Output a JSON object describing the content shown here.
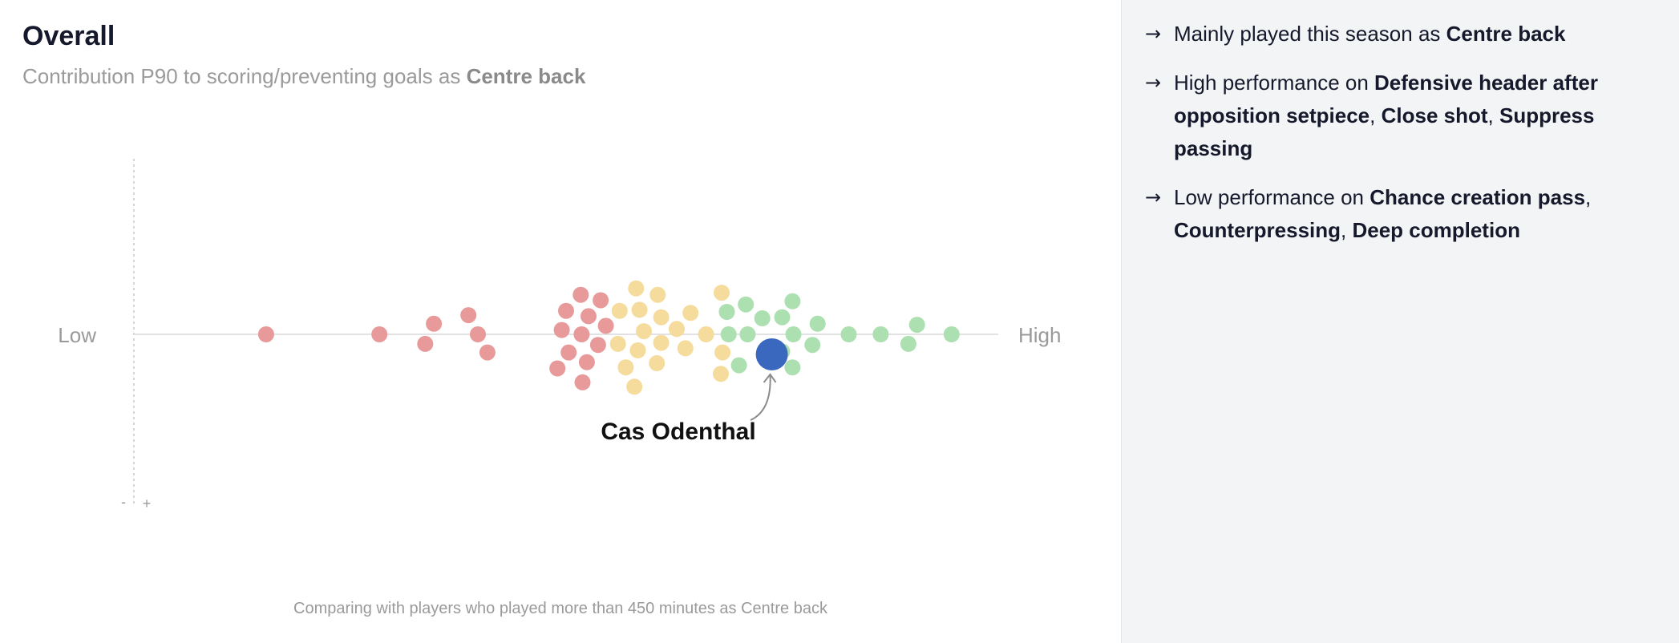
{
  "chart_data": {
    "type": "scatter",
    "title": "Overall",
    "subtitle_prefix": "Contribution P90 to scoring/preventing goals as ",
    "subtitle_position": "Centre back",
    "x_low_label": "Low",
    "x_high_label": "High",
    "y_axis_minus": "-",
    "y_axis_plus": "+",
    "highlight_label": "Cas Odenthal",
    "footnote": "Comparing with players who played more than 450 minutes as Centre back",
    "xlim": [
      0,
      100
    ],
    "ylim": [
      -100,
      100
    ],
    "highlight": {
      "x": 73.8,
      "y": -11.5
    },
    "point_colors": {
      "low": "#e89a9a",
      "mid": "#f5dc9c",
      "high": "#ade0b0",
      "highlight": "#3a68bf"
    },
    "points": [
      {
        "x": 15.3,
        "y": 0,
        "g": "low"
      },
      {
        "x": 28.4,
        "y": 0,
        "g": "low"
      },
      {
        "x": 33.7,
        "y": -5.5,
        "g": "low"
      },
      {
        "x": 34.7,
        "y": 6.1,
        "g": "low"
      },
      {
        "x": 38.7,
        "y": 11.0,
        "g": "low"
      },
      {
        "x": 39.8,
        "y": 0,
        "g": "low"
      },
      {
        "x": 40.9,
        "y": -10.4,
        "g": "low"
      },
      {
        "x": 49.0,
        "y": -19.6,
        "g": "low"
      },
      {
        "x": 49.5,
        "y": 2.5,
        "g": "low"
      },
      {
        "x": 50.0,
        "y": 13.5,
        "g": "low"
      },
      {
        "x": 50.3,
        "y": -10.4,
        "g": "low"
      },
      {
        "x": 51.7,
        "y": 22.7,
        "g": "low"
      },
      {
        "x": 51.8,
        "y": 0,
        "g": "low"
      },
      {
        "x": 51.9,
        "y": -27.6,
        "g": "low"
      },
      {
        "x": 52.4,
        "y": -16.0,
        "g": "low"
      },
      {
        "x": 52.6,
        "y": 10.4,
        "g": "low"
      },
      {
        "x": 53.7,
        "y": -6.1,
        "g": "low"
      },
      {
        "x": 54.0,
        "y": 19.6,
        "g": "low"
      },
      {
        "x": 54.6,
        "y": 4.9,
        "g": "low"
      },
      {
        "x": 56.0,
        "y": -5.5,
        "g": "mid"
      },
      {
        "x": 56.2,
        "y": 13.5,
        "g": "mid"
      },
      {
        "x": 56.9,
        "y": -19.0,
        "g": "mid"
      },
      {
        "x": 57.9,
        "y": -30.1,
        "g": "mid"
      },
      {
        "x": 58.1,
        "y": 26.4,
        "g": "mid"
      },
      {
        "x": 58.3,
        "y": -9.2,
        "g": "mid"
      },
      {
        "x": 58.5,
        "y": 14.1,
        "g": "mid"
      },
      {
        "x": 59.0,
        "y": 1.8,
        "g": "mid"
      },
      {
        "x": 60.5,
        "y": -16.6,
        "g": "mid"
      },
      {
        "x": 60.6,
        "y": 22.7,
        "g": "mid"
      },
      {
        "x": 61.0,
        "y": -4.9,
        "g": "mid"
      },
      {
        "x": 61.0,
        "y": 9.8,
        "g": "mid"
      },
      {
        "x": 62.8,
        "y": 3.1,
        "g": "mid"
      },
      {
        "x": 63.8,
        "y": -8.0,
        "g": "mid"
      },
      {
        "x": 64.4,
        "y": 12.3,
        "g": "mid"
      },
      {
        "x": 66.2,
        "y": 0,
        "g": "mid"
      },
      {
        "x": 68.0,
        "y": 23.9,
        "g": "mid"
      },
      {
        "x": 68.1,
        "y": -10.4,
        "g": "mid"
      },
      {
        "x": 67.9,
        "y": -22.7,
        "g": "mid"
      },
      {
        "x": 68.6,
        "y": 12.9,
        "g": "high"
      },
      {
        "x": 68.8,
        "y": 0,
        "g": "high"
      },
      {
        "x": 70.0,
        "y": -17.8,
        "g": "high"
      },
      {
        "x": 70.8,
        "y": 17.2,
        "g": "high"
      },
      {
        "x": 71.0,
        "y": 0,
        "g": "high"
      },
      {
        "x": 72.7,
        "y": 9.2,
        "g": "high"
      },
      {
        "x": 75.0,
        "y": 9.8,
        "g": "high"
      },
      {
        "x": 75.0,
        "y": -9.8,
        "g": "high"
      },
      {
        "x": 76.3,
        "y": 0,
        "g": "high"
      },
      {
        "x": 76.2,
        "y": 19.0,
        "g": "high"
      },
      {
        "x": 76.2,
        "y": -19.0,
        "g": "high"
      },
      {
        "x": 78.5,
        "y": -6.1,
        "g": "high"
      },
      {
        "x": 79.1,
        "y": 6.1,
        "g": "high"
      },
      {
        "x": 82.7,
        "y": 0,
        "g": "high"
      },
      {
        "x": 86.4,
        "y": 0,
        "g": "high"
      },
      {
        "x": 89.6,
        "y": -5.5,
        "g": "high"
      },
      {
        "x": 90.6,
        "y": 5.5,
        "g": "high"
      },
      {
        "x": 94.6,
        "y": 0,
        "g": "high"
      }
    ]
  },
  "insights": [
    {
      "parts": [
        {
          "t": "Mainly played this season as ",
          "b": false
        },
        {
          "t": "Centre back",
          "b": true
        }
      ]
    },
    {
      "parts": [
        {
          "t": "High performance on ",
          "b": false
        },
        {
          "t": "Defensive header after opposition setpiece",
          "b": true
        },
        {
          "t": ", ",
          "b": false
        },
        {
          "t": "Close shot",
          "b": true
        },
        {
          "t": ", ",
          "b": false
        },
        {
          "t": "Suppress passing",
          "b": true
        }
      ]
    },
    {
      "parts": [
        {
          "t": "Low performance on ",
          "b": false
        },
        {
          "t": "Chance creation pass",
          "b": true
        },
        {
          "t": ", ",
          "b": false
        },
        {
          "t": "Counterpressing",
          "b": true
        },
        {
          "t": ", ",
          "b": false
        },
        {
          "t": "Deep completion",
          "b": true
        }
      ]
    }
  ],
  "arrow_glyph": "→"
}
